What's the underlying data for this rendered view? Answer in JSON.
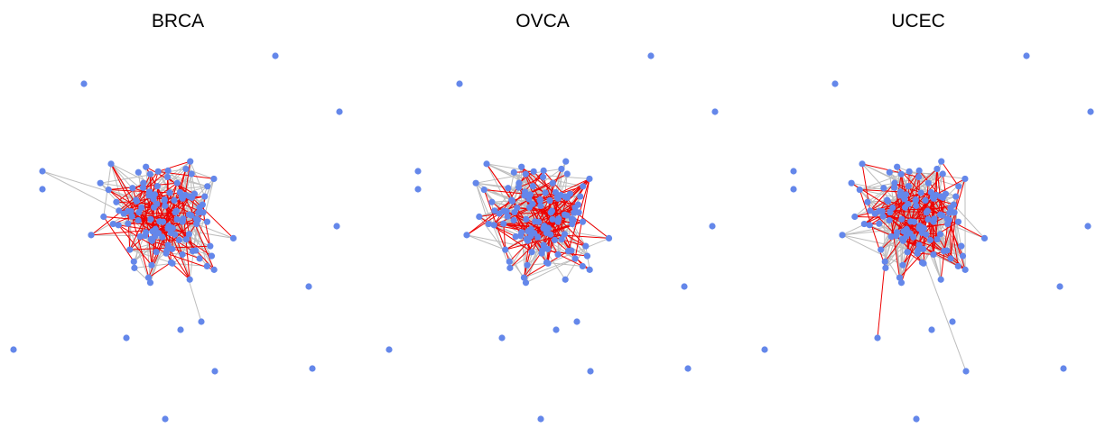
{
  "panels": [
    {
      "title": "BRCA"
    },
    {
      "title": "OVCA"
    },
    {
      "title": "UCEC"
    }
  ]
}
